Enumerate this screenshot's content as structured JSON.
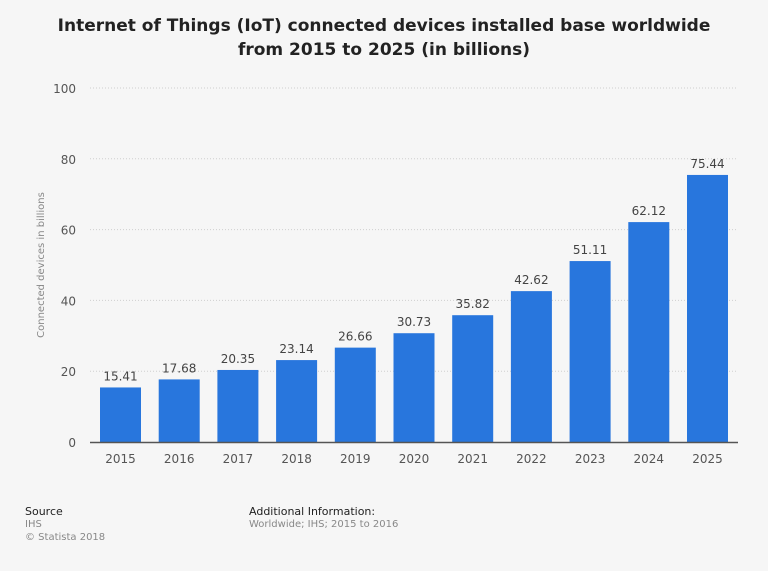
{
  "chart_data": {
    "type": "bar",
    "title_line1": "Internet of Things (IoT) connected devices installed base worldwide",
    "title_line2": "from 2015 to 2025 (in billions)",
    "xlabel": "",
    "ylabel": "Connected devices in billions",
    "categories": [
      "2015",
      "2016",
      "2017",
      "2018",
      "2019",
      "2020",
      "2021",
      "2022",
      "2023",
      "2024",
      "2025"
    ],
    "values": [
      15.41,
      17.68,
      20.35,
      23.14,
      26.66,
      30.73,
      35.82,
      42.62,
      51.11,
      62.12,
      75.44
    ],
    "ylim": [
      0,
      100
    ],
    "yticks": [
      0,
      20,
      40,
      60,
      80,
      100
    ],
    "grid": true,
    "bar_color": "#2876dd"
  },
  "footer": {
    "source_label": "Source",
    "source_value": "IHS",
    "copyright": "© Statista 2018",
    "additional_label": "Additional Information:",
    "additional_value": "Worldwide; IHS; 2015 to 2016"
  }
}
